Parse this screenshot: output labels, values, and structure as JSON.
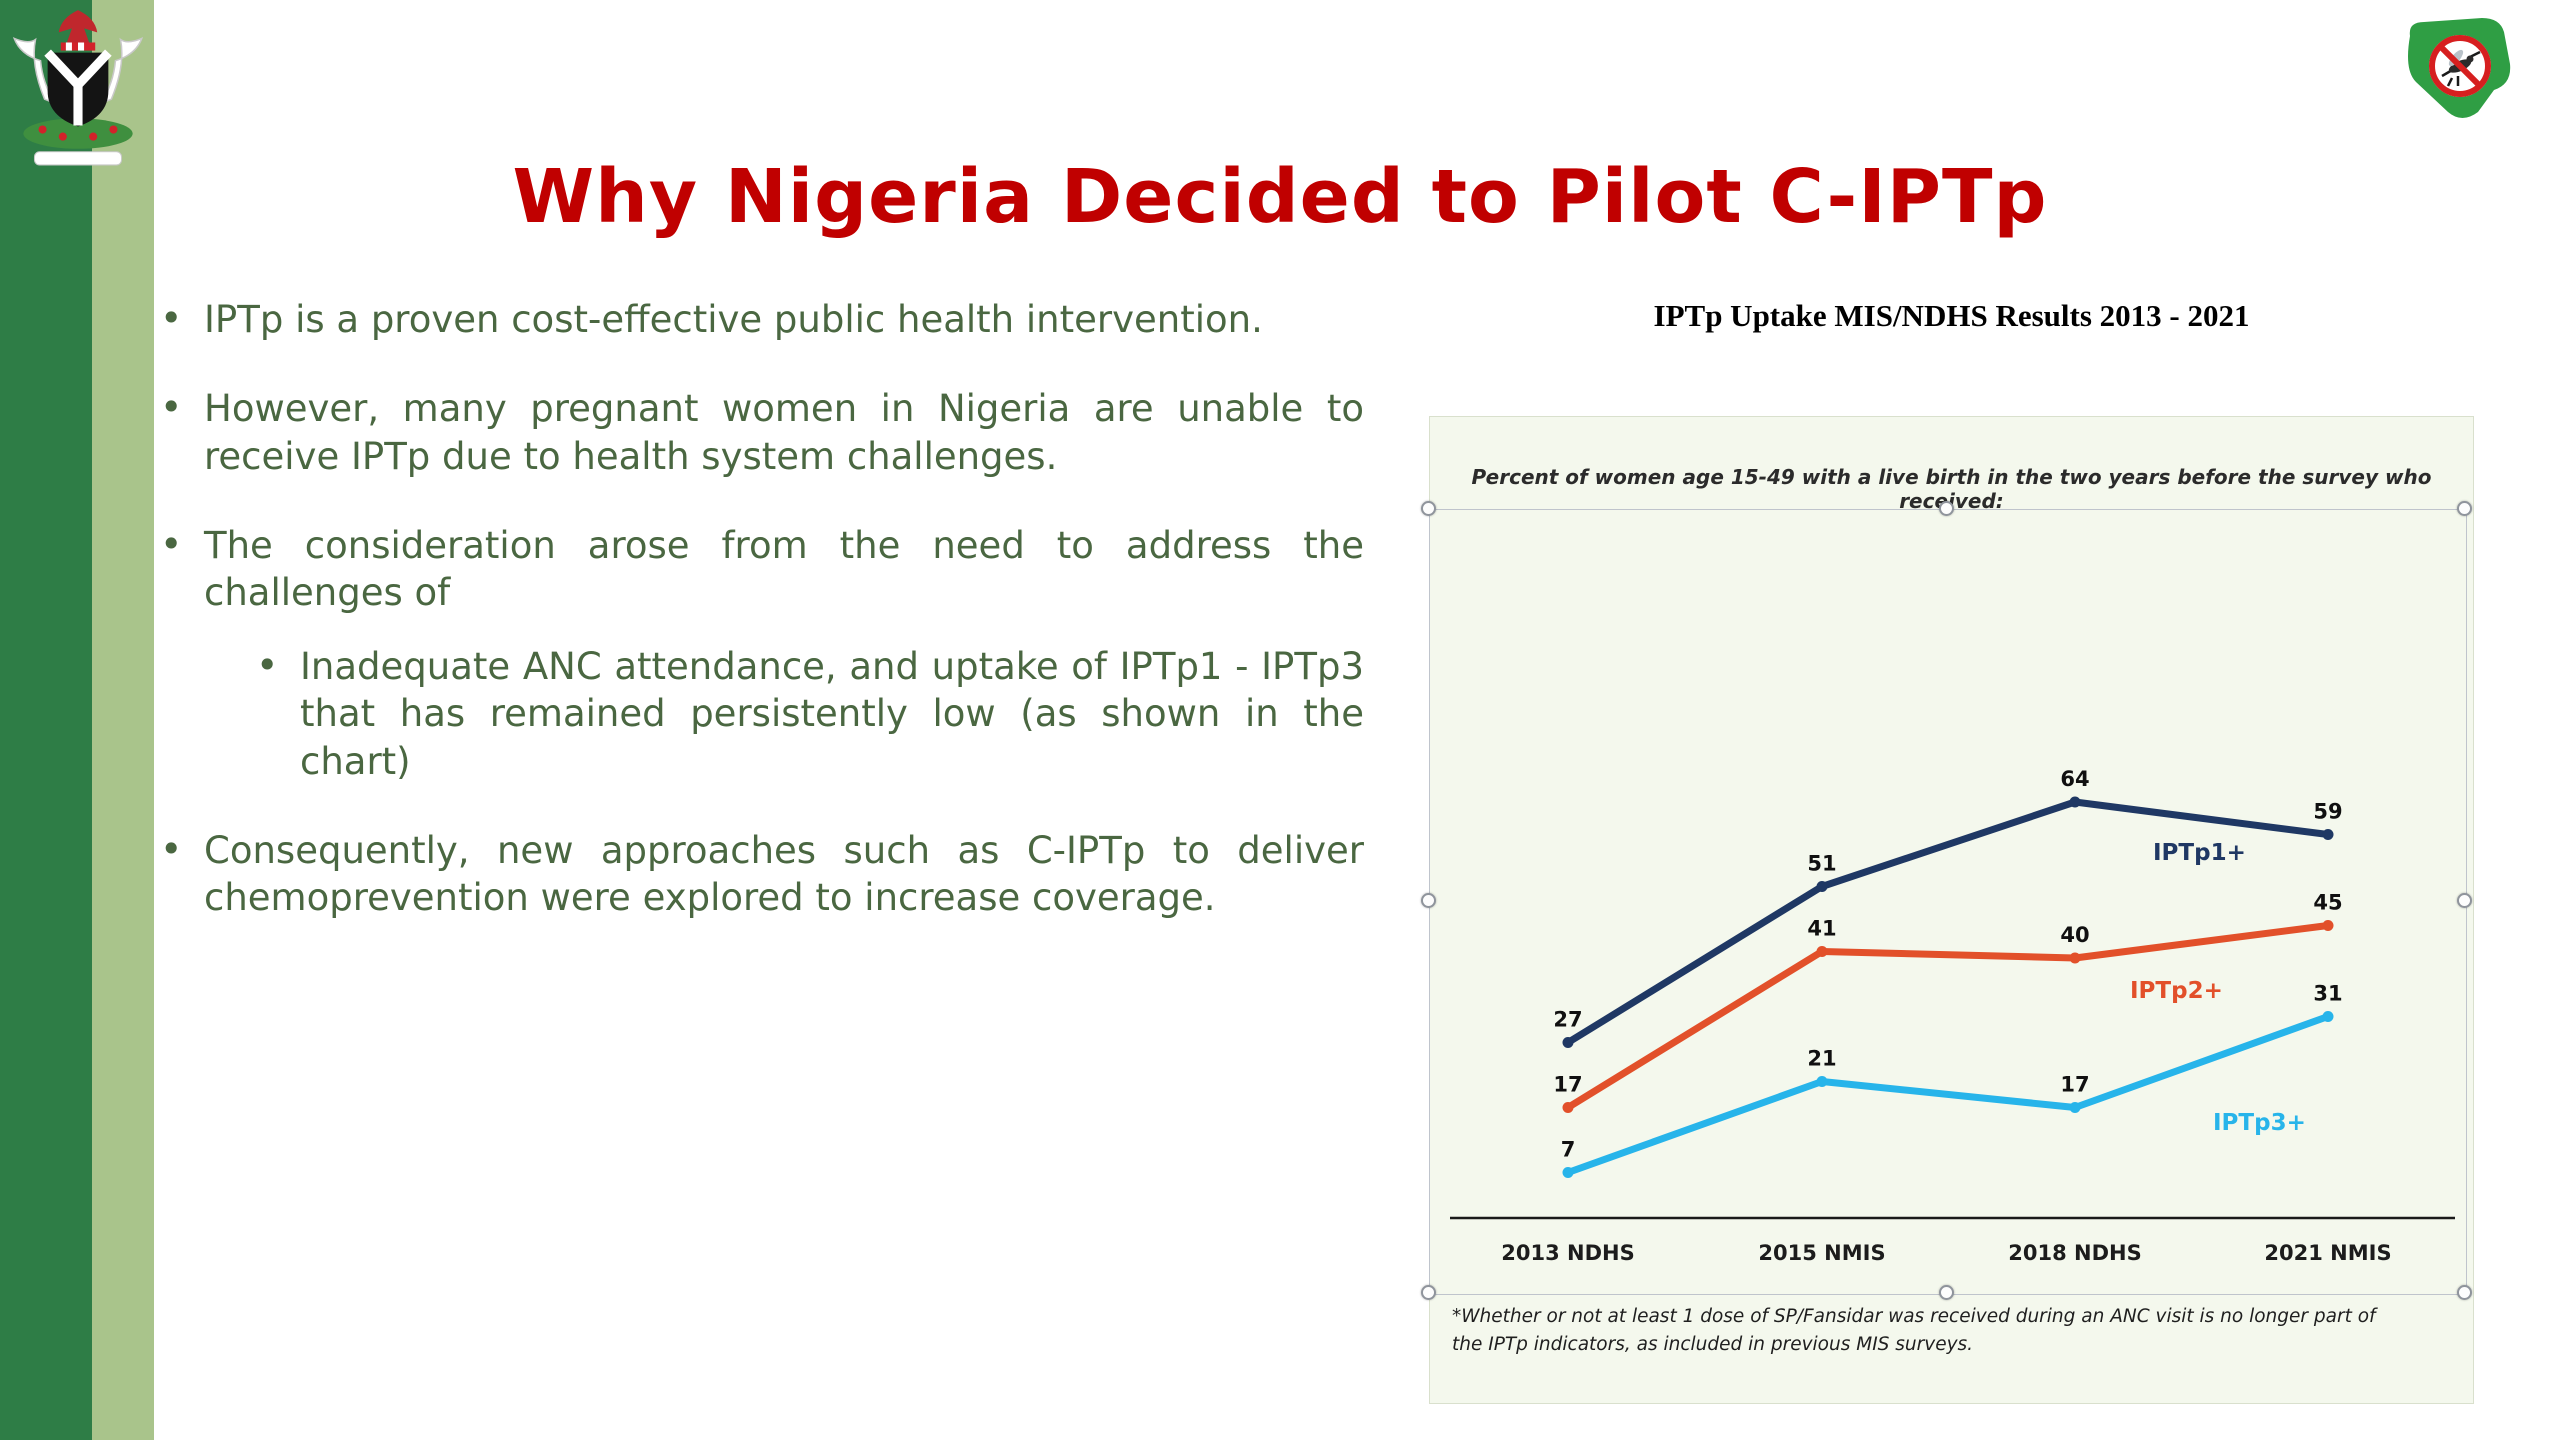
{
  "slide": {
    "title": "Why Nigeria Decided to Pilot C-IPTp",
    "colors": {
      "title": "#c00000",
      "body": "#4a6741",
      "strip_dark": "#2e7d46",
      "strip_light": "#a9c48b",
      "panel": "#f4f8ed"
    },
    "bullets": [
      {
        "level": 1,
        "text": "IPTp is a proven cost-effective public health intervention."
      },
      {
        "level": 1,
        "text": "However, many pregnant women in Nigeria are unable to receive IPTp due to health system challenges."
      },
      {
        "level": 1,
        "text": "The consideration arose from the need to address the challenges of"
      },
      {
        "level": 2,
        "text": "Inadequate ANC attendance, and uptake of IPTp1 - IPTp3 that has remained persistently low (as shown in the chart)"
      },
      {
        "level": 1,
        "text": "Consequently, new approaches such as C-IPTp to deliver chemoprevention were explored to increase coverage."
      }
    ],
    "logos": {
      "top_left": "nigeria-coat-of-arms",
      "top_right": "nmep-malaria-elimination-logo"
    }
  },
  "chart_data": {
    "type": "line",
    "title": "IPTp Uptake MIS/NDHS Results 2013 - 2021",
    "subtitle": "Percent of women age 15-49 with a live birth in the two years before the survey who received:",
    "categories": [
      "2013 NDHS",
      "2015 NMIS",
      "2018 NDHS",
      "2021 NMIS"
    ],
    "series": [
      {
        "name": "IPTp1+",
        "color": "#1f3864",
        "values": [
          27,
          51,
          64,
          59
        ]
      },
      {
        "name": "IPTp2+",
        "color": "#e2502a",
        "values": [
          17,
          41,
          40,
          45
        ]
      },
      {
        "name": "IPTp3+",
        "color": "#27b4ea",
        "values": [
          7,
          21,
          17,
          31
        ]
      }
    ],
    "ylim": [
      0,
      75
    ],
    "grid": false,
    "legend_position": "inline-near-lines",
    "footnote": "*Whether or not at least 1 dose of SP/Fansidar was received during an ANC visit is no longer part of the IPTp indicators, as included in previous MIS surveys."
  }
}
